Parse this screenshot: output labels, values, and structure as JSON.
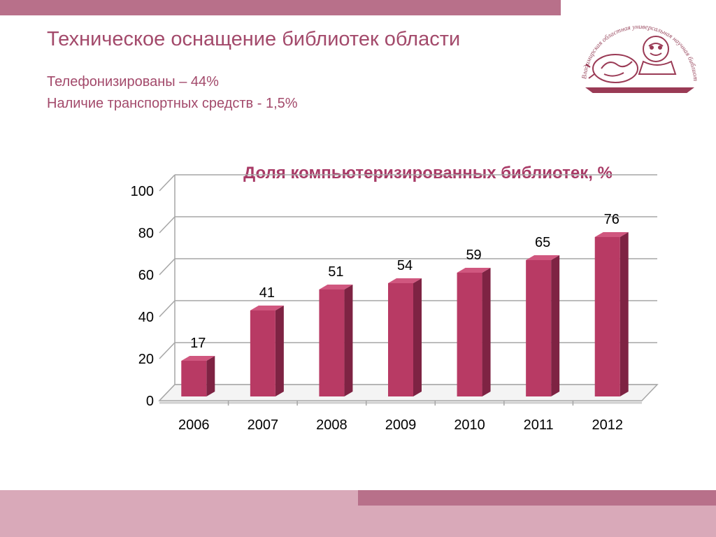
{
  "slide": {
    "title": "Техническое оснащение библиотек области",
    "line1": "Телефонизированы – 44%",
    "line2": "Наличие транспортных средств -  1,5%"
  },
  "logo": {
    "text": "Владимирская областная универсальная научная библиотека им. М. Горького"
  },
  "colors": {
    "accent": "#b8708a",
    "band": "#d9a9b9",
    "title": "#a34a6b",
    "bar_front": "#b83a64",
    "bar_side": "#7e2343",
    "bar_top": "#d0577f"
  },
  "chart_data": {
    "type": "bar",
    "title": "Доля компьютеризированных библиотек, %",
    "categories": [
      "2006",
      "2007",
      "2008",
      "2009",
      "2010",
      "2011",
      "2012"
    ],
    "values": [
      17,
      41,
      51,
      54,
      59,
      65,
      76
    ],
    "value_labels": [
      "17",
      "41",
      "51",
      "54",
      "59",
      "65",
      "76"
    ],
    "y_ticks": [
      "0",
      "20",
      "40",
      "60",
      "80",
      "100"
    ],
    "ylim": [
      0,
      100
    ],
    "grid": true,
    "legend": "none",
    "style": "3d"
  }
}
